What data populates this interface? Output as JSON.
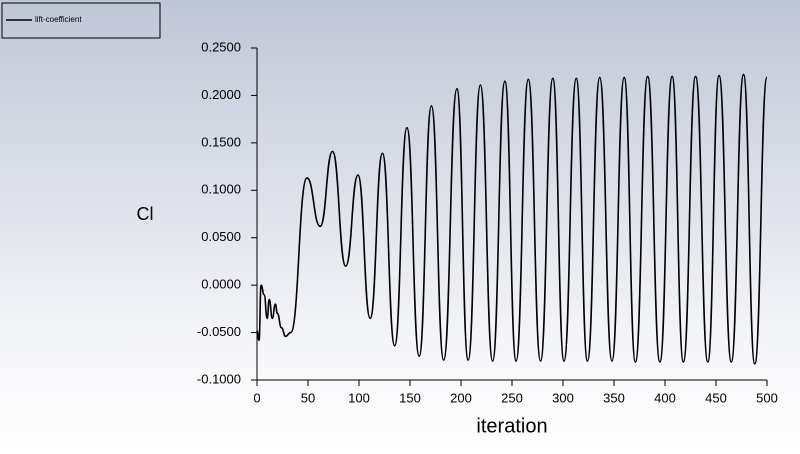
{
  "chart_data": {
    "type": "line",
    "x_label": "iteration",
    "y_label": "Cl",
    "x": [
      0,
      2,
      4,
      7,
      10,
      12,
      15,
      18,
      20,
      24,
      28,
      33,
      49,
      62,
      74,
      87,
      99,
      111,
      123,
      135,
      147,
      159,
      171,
      183,
      196,
      207,
      219,
      231,
      243,
      254,
      266,
      278,
      290,
      301,
      313,
      324,
      336,
      348,
      360,
      371,
      383,
      395,
      407,
      418,
      430,
      442,
      453,
      465,
      477,
      488,
      500
    ],
    "series": [
      {
        "name": "lift-coefficient",
        "color": "#000000",
        "values": [
          -0.048,
          -0.058,
          0.0,
          -0.01,
          -0.035,
          -0.015,
          -0.035,
          -0.02,
          -0.03,
          -0.045,
          -0.054,
          -0.05,
          0.113,
          0.062,
          0.141,
          0.02,
          0.116,
          -0.035,
          0.139,
          -0.064,
          0.166,
          -0.075,
          0.189,
          -0.079,
          0.207,
          -0.079,
          0.211,
          -0.08,
          0.215,
          -0.08,
          0.217,
          -0.08,
          0.218,
          -0.08,
          0.218,
          -0.08,
          0.219,
          -0.08,
          0.219,
          -0.081,
          0.22,
          -0.081,
          0.22,
          -0.081,
          0.22,
          -0.081,
          0.221,
          -0.081,
          0.222,
          -0.083,
          0.219
        ]
      }
    ],
    "xlim": [
      0,
      500
    ],
    "xticks": [
      0,
      50,
      100,
      150,
      200,
      250,
      300,
      350,
      400,
      450,
      500
    ],
    "ylim": [
      -0.1,
      0.25
    ],
    "yticks": [
      {
        "value": -0.1,
        "label": "-0.1000"
      },
      {
        "value": -0.05,
        "label": "-0.0500"
      },
      {
        "value": 0,
        "label": "0.0000"
      },
      {
        "value": 0.05,
        "label": "0.0500"
      },
      {
        "value": 0.1,
        "label": "0.1000"
      },
      {
        "value": 0.15,
        "label": "0.1500"
      },
      {
        "value": 0.2,
        "label": "0.2000"
      },
      {
        "value": 0.25,
        "label": "0.2500"
      }
    ],
    "grid": false,
    "legend": "top-left"
  }
}
